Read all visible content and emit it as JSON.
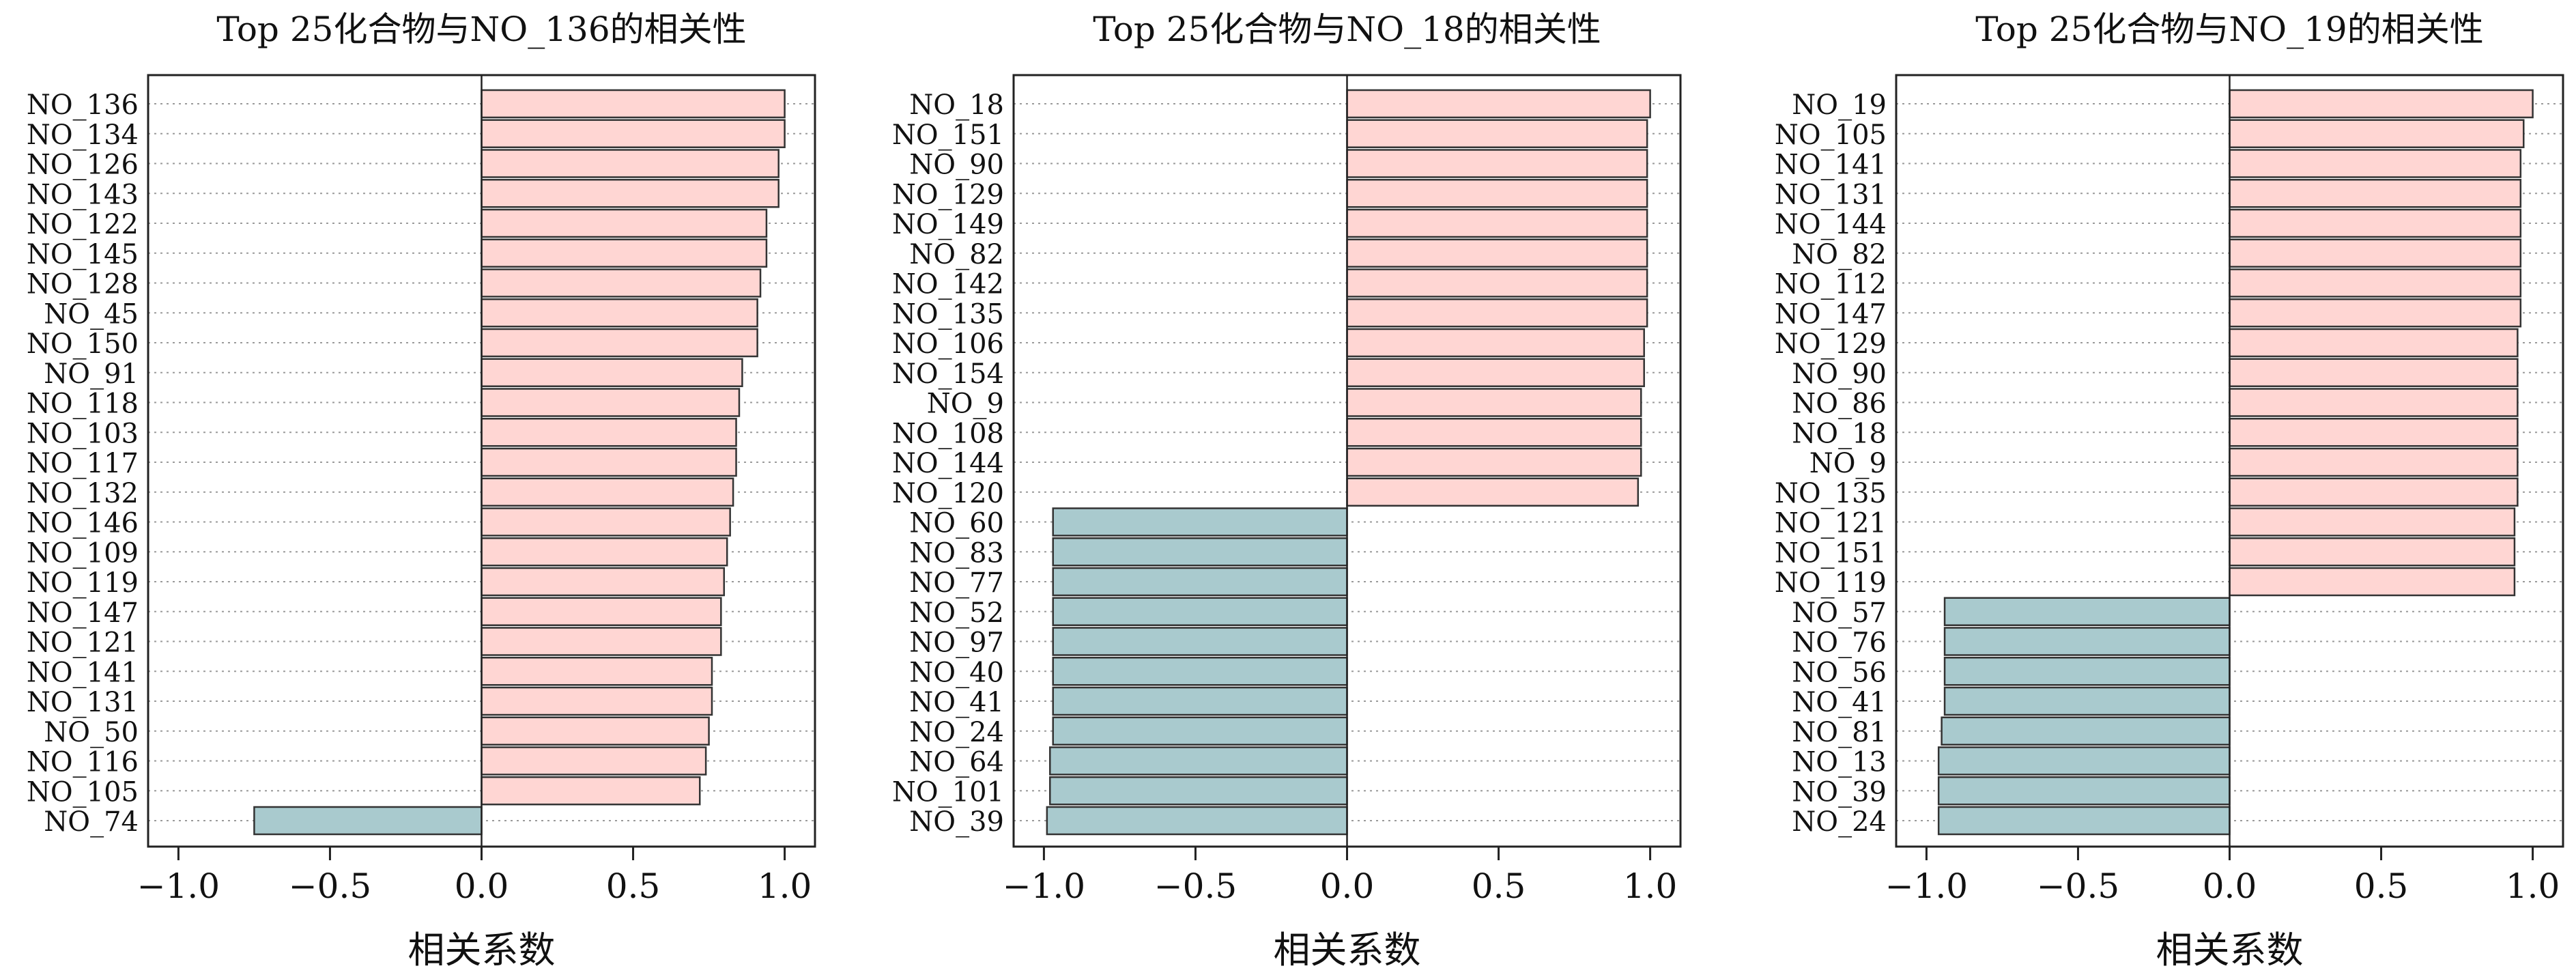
{
  "colors": {
    "positive": "#ffd6d3",
    "negative": "#a9cace",
    "bar_stroke": "#333333",
    "axis": "#222222",
    "grid": "#9a9a9a"
  },
  "chart_data": [
    {
      "type": "bar",
      "orientation": "horizontal",
      "title": "Top 25化合物与NO_136的相关性",
      "xlabel": "相关系数",
      "xlim": [
        -1.0,
        1.0
      ],
      "xticks": [
        "−1.0",
        "−0.5",
        "0.0",
        "0.5",
        "1.0"
      ],
      "tick_values": [
        -1.0,
        -0.5,
        0.0,
        0.5,
        1.0
      ],
      "grid": "horizontal dotted",
      "categories": [
        "NO_136",
        "NO_134",
        "NO_126",
        "NO_143",
        "NO_122",
        "NO_145",
        "NO_128",
        "NO_45",
        "NO_150",
        "NO_91",
        "NO_118",
        "NO_103",
        "NO_117",
        "NO_132",
        "NO_146",
        "NO_109",
        "NO_119",
        "NO_147",
        "NO_121",
        "NO_141",
        "NO_131",
        "NO_50",
        "NO_116",
        "NO_105",
        "NO_74"
      ],
      "values": [
        1.0,
        1.0,
        0.98,
        0.98,
        0.94,
        0.94,
        0.92,
        0.91,
        0.91,
        0.86,
        0.85,
        0.84,
        0.84,
        0.83,
        0.82,
        0.81,
        0.8,
        0.79,
        0.79,
        0.76,
        0.76,
        0.75,
        0.74,
        0.72,
        -0.75
      ]
    },
    {
      "type": "bar",
      "orientation": "horizontal",
      "title": "Top 25化合物与NO_18的相关性",
      "xlabel": "相关系数",
      "xlim": [
        -1.0,
        1.0
      ],
      "xticks": [
        "−1.0",
        "−0.5",
        "0.0",
        "0.5",
        "1.0"
      ],
      "tick_values": [
        -1.0,
        -0.5,
        0.0,
        0.5,
        1.0
      ],
      "grid": "horizontal dotted",
      "categories": [
        "NO_18",
        "NO_151",
        "NO_90",
        "NO_129",
        "NO_149",
        "NO_82",
        "NO_142",
        "NO_135",
        "NO_106",
        "NO_154",
        "NO_9",
        "NO_108",
        "NO_144",
        "NO_120",
        "NO_60",
        "NO_83",
        "NO_77",
        "NO_52",
        "NO_97",
        "NO_40",
        "NO_41",
        "NO_24",
        "NO_64",
        "NO_101",
        "NO_39"
      ],
      "values": [
        1.0,
        0.99,
        0.99,
        0.99,
        0.99,
        0.99,
        0.99,
        0.99,
        0.98,
        0.98,
        0.97,
        0.97,
        0.97,
        0.96,
        -0.97,
        -0.97,
        -0.97,
        -0.97,
        -0.97,
        -0.97,
        -0.97,
        -0.97,
        -0.98,
        -0.98,
        -0.99
      ]
    },
    {
      "type": "bar",
      "orientation": "horizontal",
      "title": "Top 25化合物与NO_19的相关性",
      "xlabel": "相关系数",
      "xlim": [
        -1.0,
        1.0
      ],
      "xticks": [
        "−1.0",
        "−0.5",
        "0.0",
        "0.5",
        "1.0"
      ],
      "tick_values": [
        -1.0,
        -0.5,
        0.0,
        0.5,
        1.0
      ],
      "grid": "horizontal dotted",
      "categories": [
        "NO_19",
        "NO_105",
        "NO_141",
        "NO_131",
        "NO_144",
        "NO_82",
        "NO_112",
        "NO_147",
        "NO_129",
        "NO_90",
        "NO_86",
        "NO_18",
        "NO_9",
        "NO_135",
        "NO_121",
        "NO_151",
        "NO_119",
        "NO_57",
        "NO_76",
        "NO_56",
        "NO_41",
        "NO_81",
        "NO_13",
        "NO_39",
        "NO_24"
      ],
      "values": [
        1.0,
        0.97,
        0.96,
        0.96,
        0.96,
        0.96,
        0.96,
        0.96,
        0.95,
        0.95,
        0.95,
        0.95,
        0.95,
        0.95,
        0.94,
        0.94,
        0.94,
        -0.94,
        -0.94,
        -0.94,
        -0.94,
        -0.95,
        -0.96,
        -0.96,
        -0.96
      ]
    }
  ]
}
